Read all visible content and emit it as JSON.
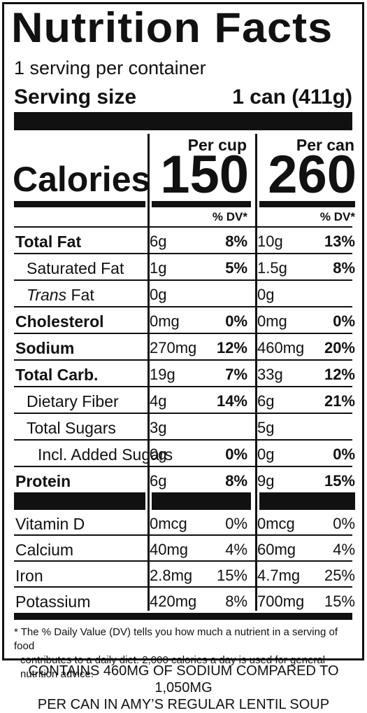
{
  "title": "Nutrition Facts",
  "servings_per_container": "1 serving per container",
  "serving_size_label": "Serving size",
  "serving_size_value": "1 can (411g)",
  "col1_header": "Per cup",
  "col2_header": "Per can",
  "calories_label": "Calories",
  "calories_cup": "150",
  "calories_can": "260",
  "dv_header": "% DV*",
  "nutrients": [
    {
      "label": "Total Fat",
      "cup_amt": "6g",
      "cup_dv": "8%",
      "can_amt": "10g",
      "can_dv": "13%",
      "bold": true
    },
    {
      "label": "Saturated Fat",
      "cup_amt": "1g",
      "cup_dv": "5%",
      "can_amt": "1.5g",
      "can_dv": "8%",
      "indent": 1
    },
    {
      "label_italic": "Trans",
      "label": " Fat",
      "cup_amt": "0g",
      "cup_dv": "",
      "can_amt": "0g",
      "can_dv": "",
      "indent": 1
    },
    {
      "label": "Cholesterol",
      "cup_amt": "0mg",
      "cup_dv": "0%",
      "can_amt": "0mg",
      "can_dv": "0%",
      "bold": true
    },
    {
      "label": "Sodium",
      "cup_amt": "270mg",
      "cup_dv": "12%",
      "can_amt": "460mg",
      "can_dv": "20%",
      "bold": true
    },
    {
      "label": "Total Carb.",
      "cup_amt": "19g",
      "cup_dv": "7%",
      "can_amt": "33g",
      "can_dv": "12%",
      "bold": true
    },
    {
      "label": "Dietary Fiber",
      "cup_amt": "4g",
      "cup_dv": "14%",
      "can_amt": "6g",
      "can_dv": "21%",
      "indent": 1
    },
    {
      "label": "Total Sugars",
      "cup_amt": "3g",
      "cup_dv": "",
      "can_amt": "5g",
      "can_dv": "",
      "indent": 1
    },
    {
      "label": "Incl. Added Sugars",
      "cup_amt": "0g",
      "cup_dv": "0%",
      "can_amt": "0g",
      "can_dv": "0%",
      "indent": 2
    },
    {
      "label": "Protein",
      "cup_amt": "6g",
      "cup_dv": "8%",
      "can_amt": "9g",
      "can_dv": "15%",
      "bold": true
    }
  ],
  "vitamins": [
    {
      "label": "Vitamin D",
      "cup_amt": "0mcg",
      "cup_dv": "0%",
      "can_amt": "0mcg",
      "can_dv": "0%"
    },
    {
      "label": "Calcium",
      "cup_amt": "40mg",
      "cup_dv": "4%",
      "can_amt": "60mg",
      "can_dv": "4%"
    },
    {
      "label": "Iron",
      "cup_amt": "2.8mg",
      "cup_dv": "15%",
      "can_amt": "4.7mg",
      "can_dv": "25%"
    },
    {
      "label": "Potassium",
      "cup_amt": "420mg",
      "cup_dv": "8%",
      "can_amt": "700mg",
      "can_dv": "15%"
    }
  ],
  "footnote_line1": "* The % Daily Value (DV) tells you how much a nutrient in a serving of food",
  "footnote_line2": "contributes to a daily diet. 2,000 calories a day is used for general nutrition advice.",
  "bottom_line1": "CONTAINS 460MG OF SODIUM COMPARED TO 1,050MG",
  "bottom_line2": "PER CAN IN AMY’S REGULAR LENTIL SOUP"
}
